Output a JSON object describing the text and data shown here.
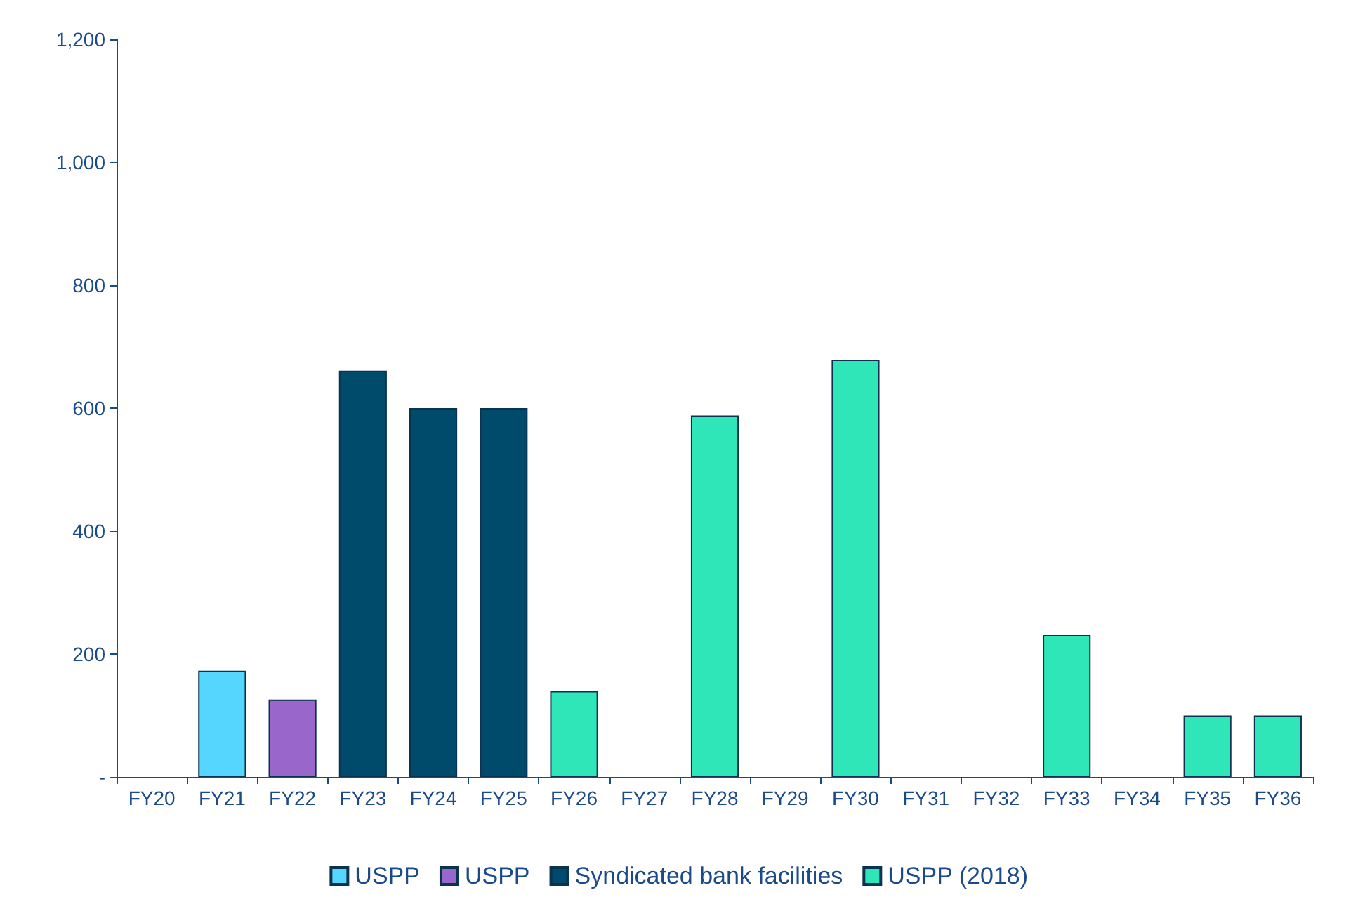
{
  "chart_data": {
    "type": "bar",
    "stacked": true,
    "categories": [
      "FY20",
      "FY21",
      "FY22",
      "FY23",
      "FY24",
      "FY25",
      "FY26",
      "FY27",
      "FY28",
      "FY29",
      "FY30",
      "FY31",
      "FY32",
      "FY33",
      "FY34",
      "FY35",
      "FY36"
    ],
    "series": [
      {
        "name": "USPP",
        "color": "#55d6ff",
        "values": [
          null,
          173,
          null,
          null,
          null,
          null,
          null,
          null,
          null,
          null,
          null,
          null,
          null,
          null,
          null,
          null,
          null
        ]
      },
      {
        "name": "USPP",
        "color": "#9966cc",
        "values": [
          null,
          null,
          126,
          null,
          null,
          null,
          null,
          null,
          null,
          null,
          null,
          null,
          null,
          null,
          null,
          null,
          null
        ]
      },
      {
        "name": "Syndicated bank facilities",
        "color": "#004a6b",
        "values": [
          null,
          null,
          null,
          661,
          600,
          600,
          null,
          null,
          null,
          null,
          null,
          null,
          null,
          null,
          null,
          null,
          null
        ]
      },
      {
        "name": "USPP (2018)",
        "color": "#2ee6b8",
        "values": [
          null,
          null,
          null,
          null,
          null,
          null,
          140,
          null,
          588,
          null,
          679,
          null,
          null,
          231,
          null,
          100,
          100
        ]
      }
    ],
    "ylim": [
      0,
      1200
    ],
    "yticks": [
      {
        "value": 0,
        "label": "-"
      },
      200,
      400,
      600,
      800,
      {
        "value": 1000,
        "label": "1,000"
      },
      {
        "value": 1200,
        "label": "1,200"
      }
    ],
    "grid": false,
    "legend": "bottom"
  }
}
